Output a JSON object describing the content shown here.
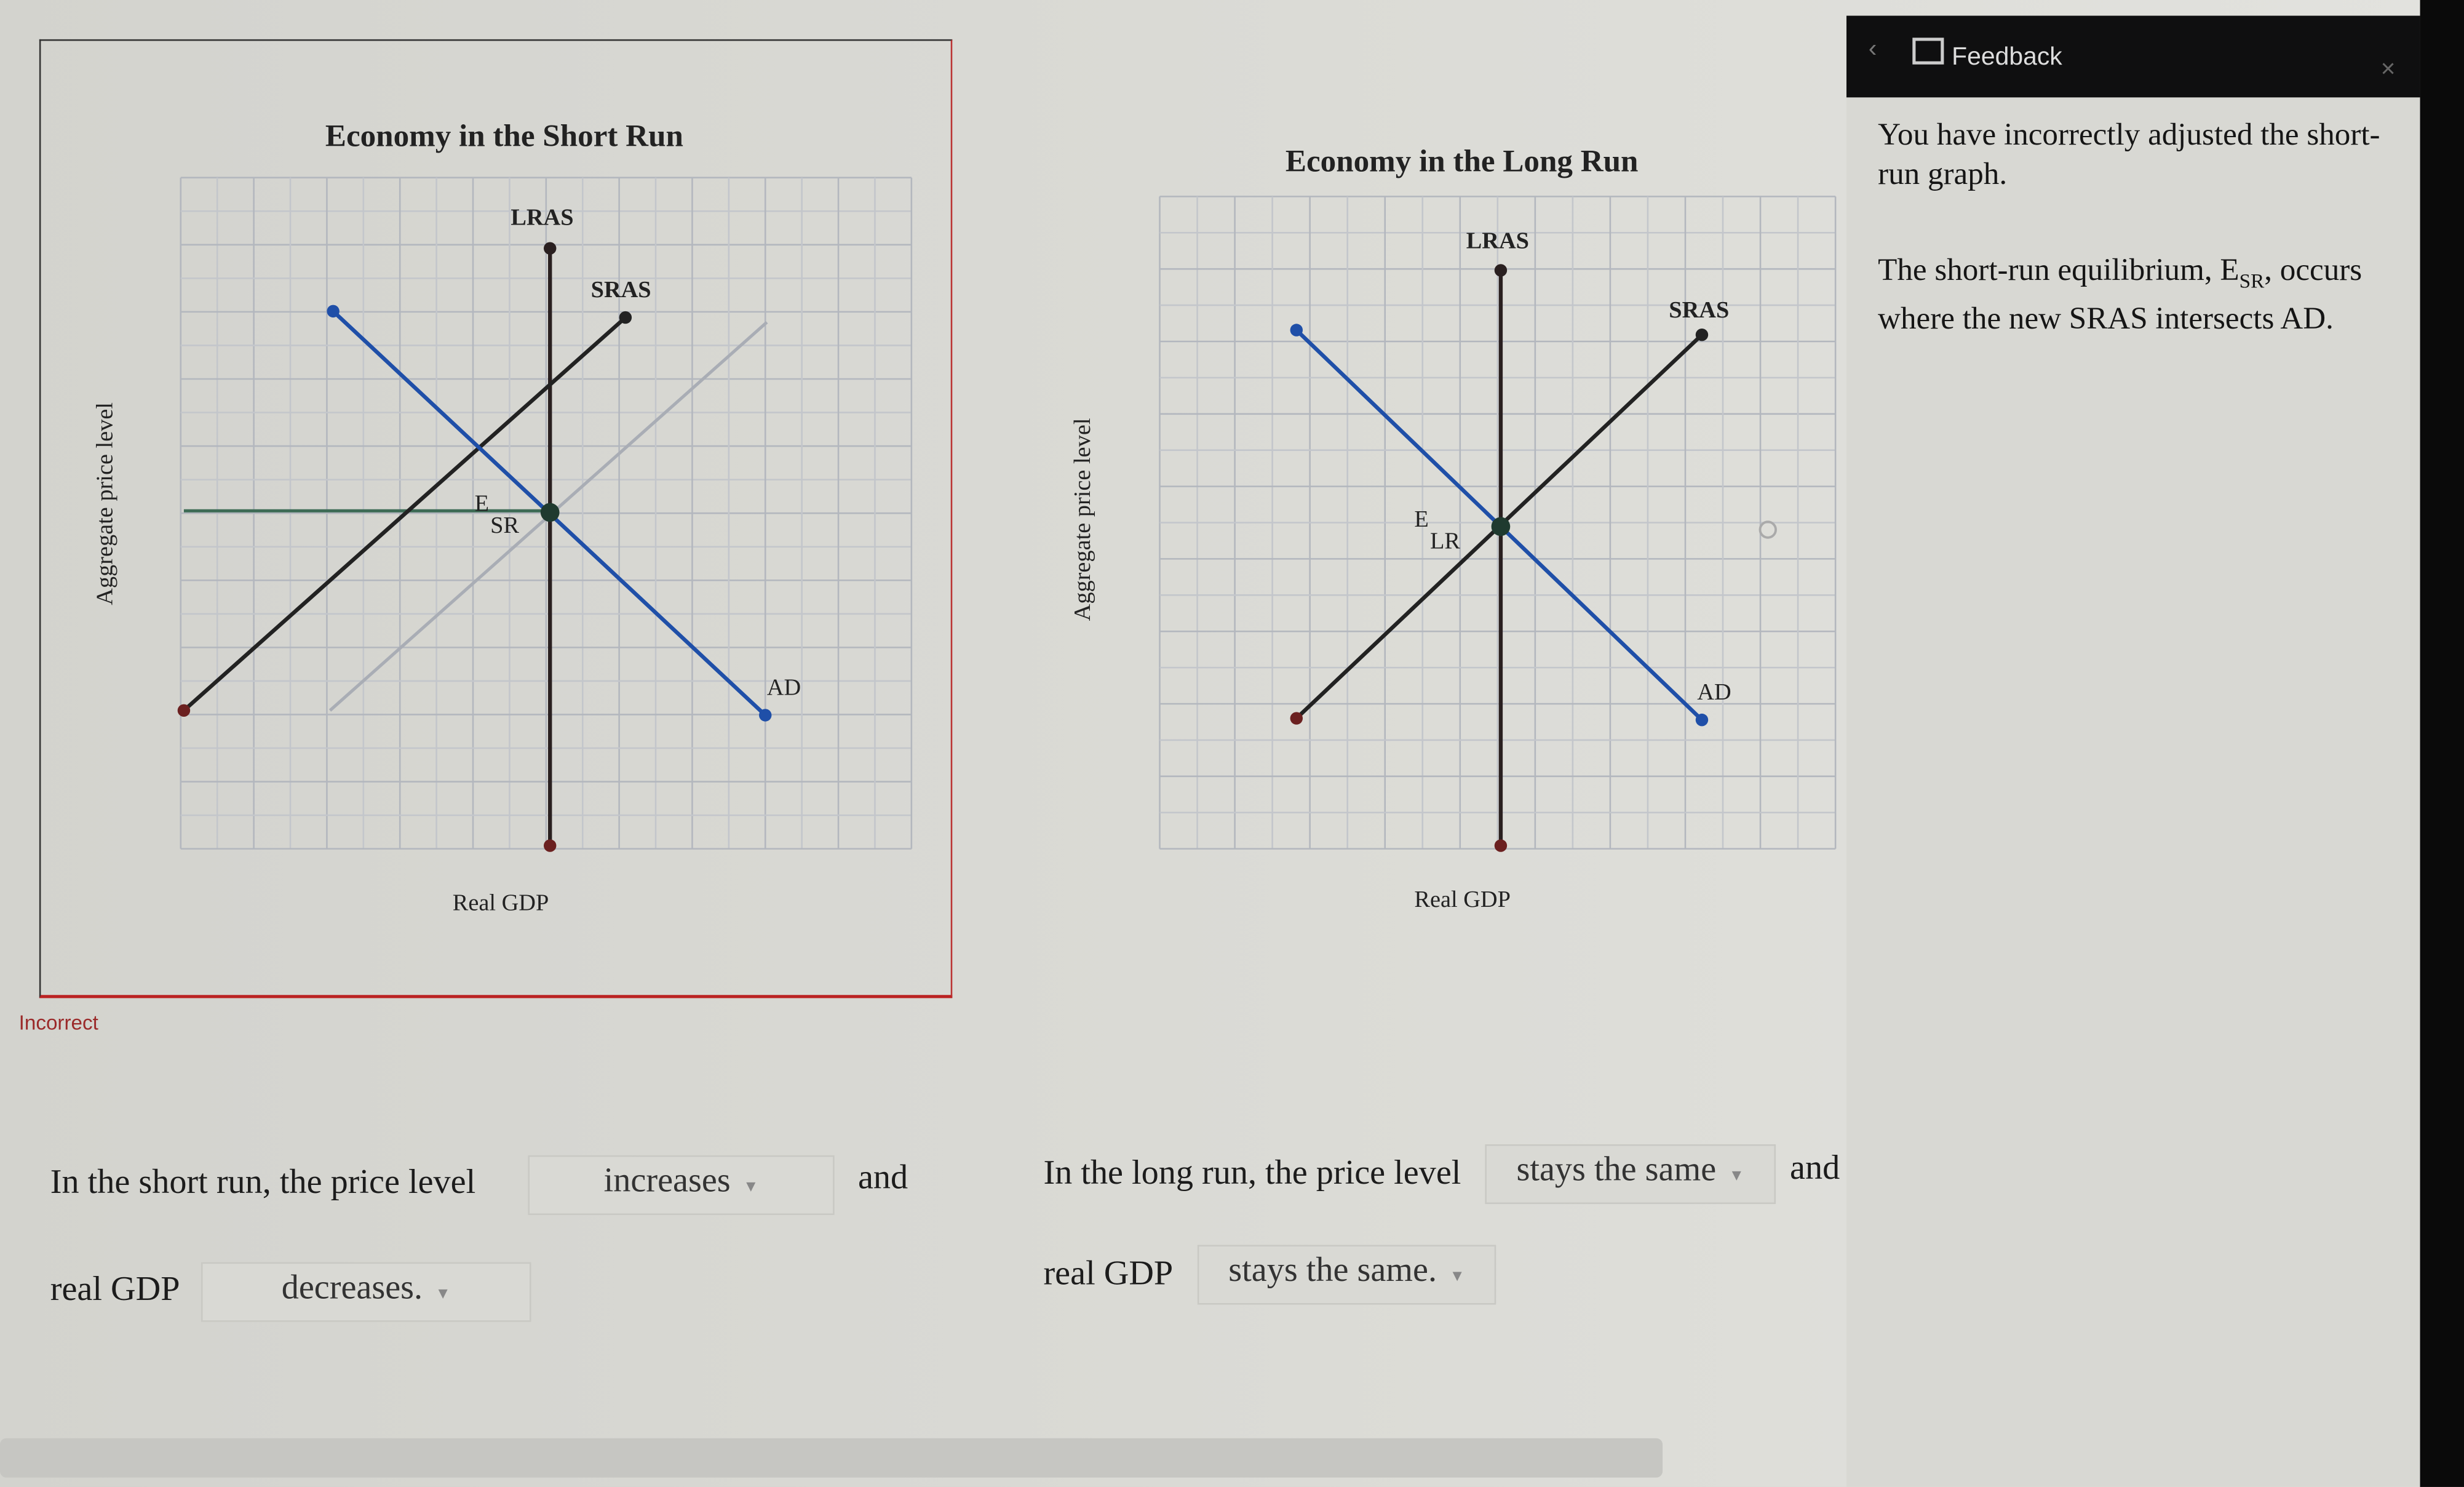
{
  "short_run_graph": {
    "title": "Economy in the Short Run",
    "x_axis_label": "Real GDP",
    "y_axis_label": "Aggregate price level",
    "curve_labels": {
      "lras": "LRAS",
      "sras": "SRAS",
      "ad": "AD"
    },
    "equilibrium_label": {
      "main": "E",
      "sub": "SR"
    },
    "status": "Incorrect",
    "colors": {
      "ad": "#1f4fa8",
      "sras": "#222222",
      "old_sras": "#a9adb5",
      "price_line": "#3d6b55",
      "border_incorrect": "#b22222"
    }
  },
  "long_run_graph": {
    "title": "Economy in the Long Run",
    "x_axis_label": "Real GDP",
    "y_axis_label": "Aggregate price level",
    "curve_labels": {
      "lras": "LRAS",
      "sras": "SRAS",
      "ad": "AD"
    },
    "equilibrium_label": {
      "main": "E",
      "sub": "LR"
    }
  },
  "questions": {
    "short_run": {
      "prefix": "In the short run, the price level",
      "price_select": "increases",
      "connector": "and",
      "gdp_prefix": "real GDP",
      "gdp_select": "decreases."
    },
    "long_run": {
      "prefix": "In the long run, the price level",
      "price_select": "stays the same",
      "connector": "and",
      "gdp_prefix": "real GDP",
      "gdp_select": "stays the same."
    }
  },
  "feedback": {
    "title": "Feedback",
    "back_icon": "chevron-left-icon",
    "close_icon": "close-icon",
    "paragraph1": "You have incorrectly adjusted the short-run graph.",
    "paragraph2_prefix": "The short-run equilibrium, E",
    "paragraph2_sub": "SR",
    "paragraph2_suffix": ", occurs where the new SRAS intersects AD."
  }
}
